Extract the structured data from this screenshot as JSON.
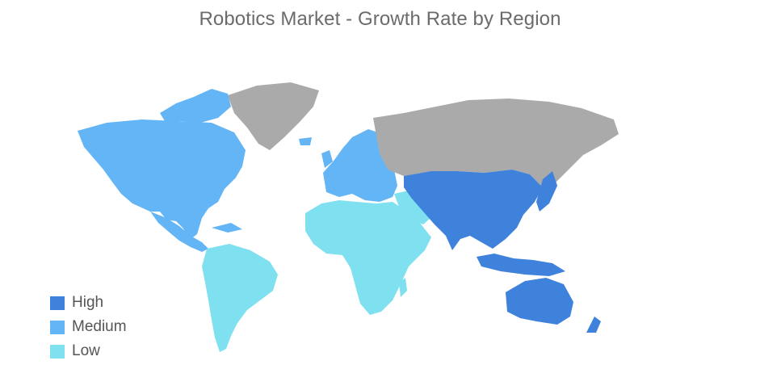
{
  "title": "Robotics Market - Growth Rate by Region",
  "colors": {
    "high": "#3e82dc",
    "medium": "#64b5f6",
    "low": "#7fe0ef",
    "no_data": "#aaaaaa"
  },
  "legend": [
    {
      "label": "High",
      "color": "#3e82dc"
    },
    {
      "label": "Medium",
      "color": "#64b5f6"
    },
    {
      "label": "Low",
      "color": "#7fe0ef"
    }
  ],
  "regions": [
    {
      "name": "North America",
      "level": "medium"
    },
    {
      "name": "Europe",
      "level": "medium"
    },
    {
      "name": "Asia-Pacific",
      "level": "high"
    },
    {
      "name": "South America",
      "level": "low"
    },
    {
      "name": "Middle East and Africa",
      "level": "low"
    }
  ]
}
